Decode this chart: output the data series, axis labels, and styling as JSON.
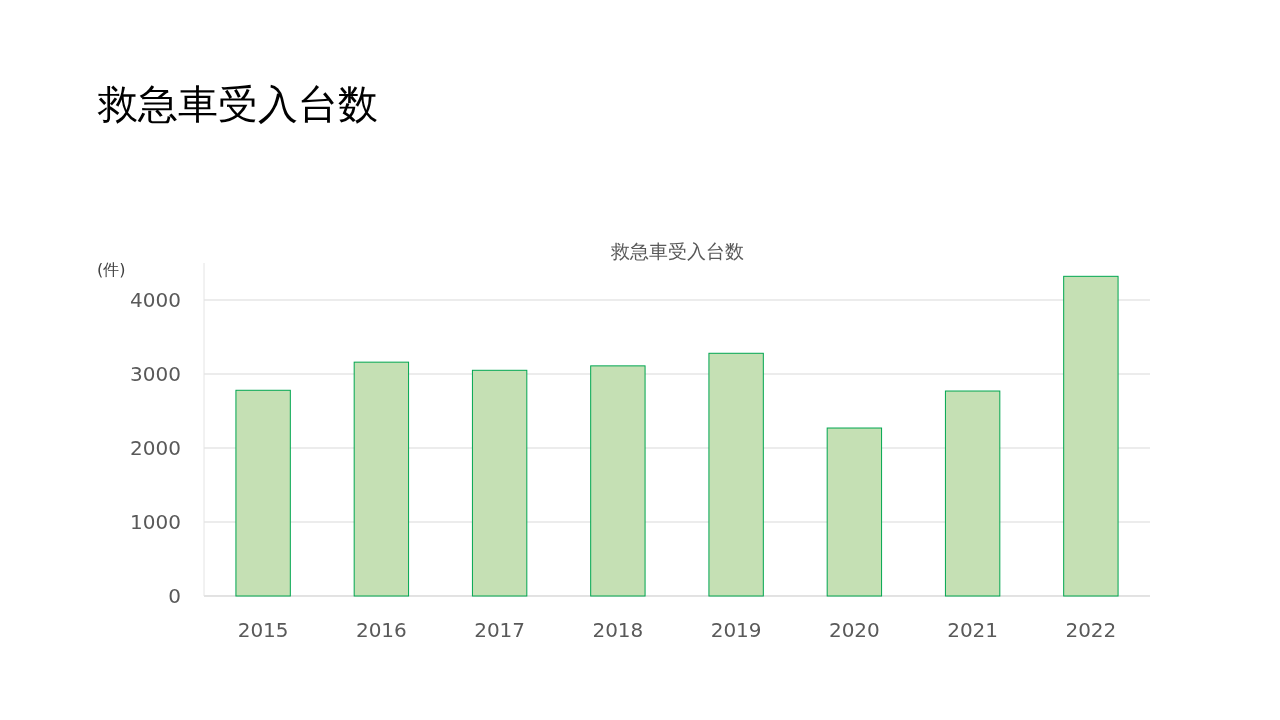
{
  "chart_data": {
    "type": "bar",
    "title": "救急車受入台数",
    "subtitle": "救急車受入台数",
    "ylabel": "(件)",
    "categories": [
      "2015",
      "2016",
      "2017",
      "2018",
      "2019",
      "2020",
      "2021",
      "2022"
    ],
    "values": [
      2780,
      3160,
      3050,
      3110,
      3280,
      2270,
      2770,
      4320
    ],
    "color": "#c5e0b4",
    "ylim": [
      0,
      4500
    ],
    "yticks": [
      0,
      1000,
      2000,
      3000,
      4000
    ],
    "grid": "y"
  }
}
